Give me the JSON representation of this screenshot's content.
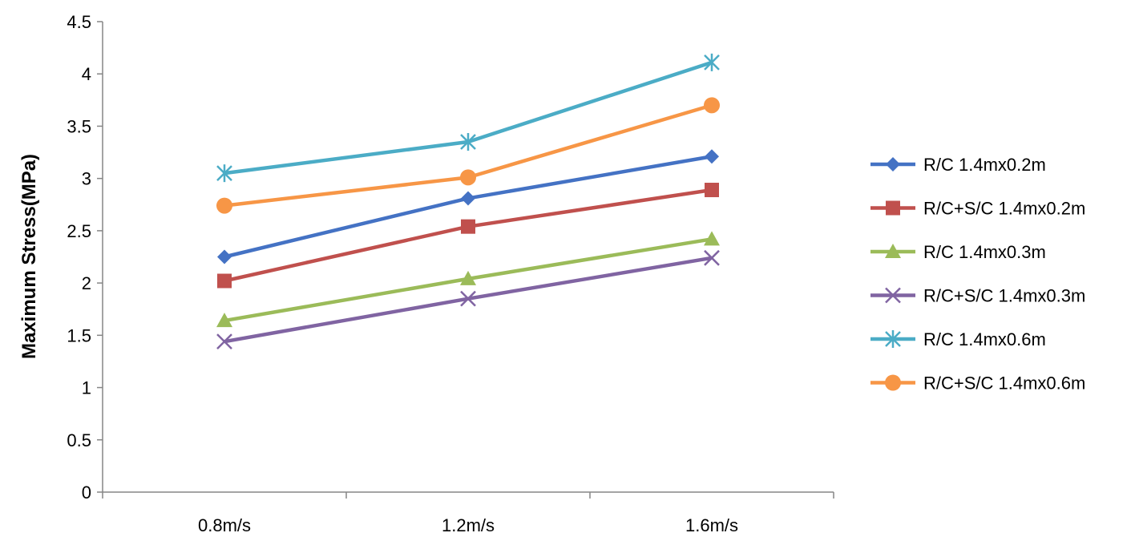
{
  "chart_data": {
    "type": "line",
    "title": "",
    "xlabel": "",
    "ylabel": "Maximum Stress(MPa)",
    "categories": [
      "0.8m/s",
      "1.2m/s",
      "1.6m/s"
    ],
    "ylim": [
      0,
      4.5
    ],
    "yticks": [
      "0",
      "0.5",
      "1",
      "1.5",
      "2",
      "2.5",
      "3",
      "3.5",
      "4",
      "4.5"
    ],
    "grid": false,
    "legend_position": "right",
    "series": [
      {
        "name": "R/C 1.4mx0.2m",
        "values": [
          2.25,
          2.81,
          3.21
        ],
        "color": "#4472C4",
        "marker": "diamond"
      },
      {
        "name": "R/C+S/C 1.4mx0.2m",
        "values": [
          2.02,
          2.54,
          2.89
        ],
        "color": "#C0504D",
        "marker": "square"
      },
      {
        "name": "R/C 1.4mx0.3m",
        "values": [
          1.64,
          2.04,
          2.42
        ],
        "color": "#9BBB59",
        "marker": "triangle"
      },
      {
        "name": "R/C+S/C 1.4mx0.3m",
        "values": [
          1.44,
          1.85,
          2.24
        ],
        "color": "#8064A2",
        "marker": "x"
      },
      {
        "name": "R/C 1.4mx0.6m",
        "values": [
          3.05,
          3.35,
          4.11
        ],
        "color": "#4BACC6",
        "marker": "star"
      },
      {
        "name": "R/C+S/C 1.4mx0.6m",
        "values": [
          2.74,
          3.01,
          3.7
        ],
        "color": "#F79646",
        "marker": "circle"
      }
    ]
  }
}
